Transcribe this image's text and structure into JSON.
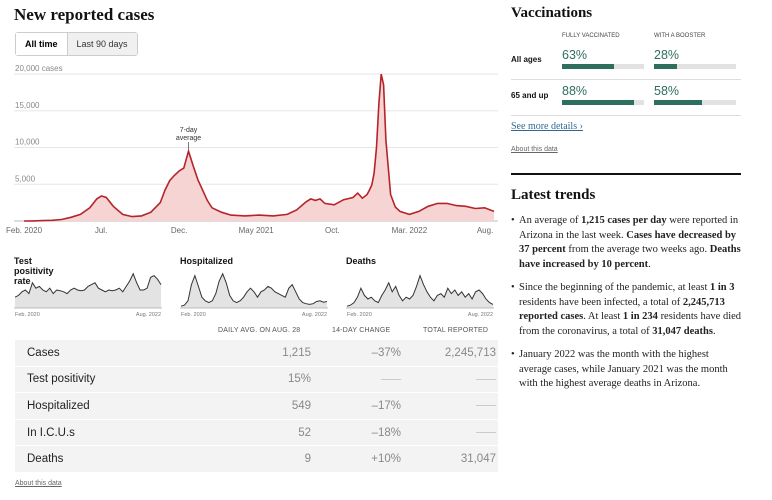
{
  "cases_section": {
    "title": "New reported cases",
    "toggle": [
      "All time",
      "Last 90 days"
    ],
    "annotation": [
      "7-day",
      "average"
    ]
  },
  "chart_data": [
    {
      "type": "area",
      "title": "New reported cases",
      "series_name": "7-day average",
      "y_ticks": [
        "20,000 cases",
        "15,000",
        "10,000",
        "5,000"
      ],
      "y_tick_values": [
        20000,
        15000,
        10000,
        5000
      ],
      "ylim": [
        0,
        20000
      ],
      "x_ticks": [
        "Feb. 2020",
        "Jul.",
        "Dec.",
        "May 2021",
        "Oct.",
        "Mar. 2022",
        "Aug."
      ],
      "x_tick_pos": [
        0,
        0.164,
        0.33,
        0.494,
        0.656,
        0.82,
        0.981
      ],
      "x": [
        0,
        0.02,
        0.04,
        0.06,
        0.08,
        0.1,
        0.12,
        0.14,
        0.155,
        0.165,
        0.175,
        0.19,
        0.21,
        0.23,
        0.25,
        0.27,
        0.29,
        0.3,
        0.31,
        0.32,
        0.33,
        0.34,
        0.35,
        0.36,
        0.37,
        0.38,
        0.39,
        0.4,
        0.42,
        0.44,
        0.47,
        0.5,
        0.53,
        0.56,
        0.58,
        0.6,
        0.61,
        0.62,
        0.63,
        0.64,
        0.66,
        0.68,
        0.7,
        0.71,
        0.72,
        0.73,
        0.735,
        0.74,
        0.745,
        0.75,
        0.755,
        0.76,
        0.765,
        0.77,
        0.78,
        0.79,
        0.8,
        0.82,
        0.84,
        0.86,
        0.88,
        0.9,
        0.92,
        0.94,
        0.96,
        0.98,
        1
      ],
      "values": [
        0,
        20,
        50,
        100,
        200,
        500,
        900,
        1800,
        3000,
        3400,
        3200,
        2000,
        900,
        600,
        700,
        1200,
        2500,
        4200,
        5500,
        6200,
        6800,
        7200,
        9500,
        7500,
        5600,
        4200,
        2800,
        1800,
        1200,
        800,
        700,
        800,
        700,
        900,
        1500,
        2600,
        3000,
        2800,
        3000,
        2400,
        2200,
        2900,
        3200,
        3800,
        3100,
        3600,
        4200,
        4900,
        6500,
        10000,
        16000,
        20000,
        18500,
        11000,
        3600,
        1900,
        1300,
        900,
        1300,
        2000,
        2400,
        2400,
        2100,
        2000,
        1700,
        1800,
        1300
      ]
    },
    {
      "type": "area",
      "title": "Test positivity rate",
      "x_ticks": [
        "Feb. 2020",
        "Aug. 2022"
      ],
      "values": [
        0.3,
        0.35,
        0.45,
        0.5,
        0.4,
        0.7,
        0.55,
        0.6,
        0.5,
        0.45,
        0.55,
        0.4,
        0.5,
        0.48,
        0.45,
        0.4,
        0.5,
        0.55,
        0.5,
        0.48,
        0.5,
        0.6,
        0.65,
        0.7,
        0.55,
        0.5,
        0.45,
        0.5,
        0.48,
        0.5,
        0.55,
        0.45,
        0.6,
        0.75,
        0.95,
        0.7,
        0.5,
        0.5,
        0.55,
        0.85,
        0.9,
        0.8,
        0.65
      ]
    },
    {
      "type": "area",
      "title": "Hospitalized",
      "x_ticks": [
        "Feb. 2020",
        "Aug. 2022"
      ],
      "values": [
        0.05,
        0.08,
        0.2,
        0.65,
        0.9,
        0.6,
        0.3,
        0.2,
        0.15,
        0.2,
        0.4,
        0.75,
        0.95,
        0.7,
        0.35,
        0.2,
        0.15,
        0.2,
        0.3,
        0.45,
        0.55,
        0.45,
        0.3,
        0.45,
        0.5,
        0.6,
        0.55,
        0.45,
        0.4,
        0.35,
        0.3,
        0.55,
        0.65,
        0.45,
        0.25,
        0.15,
        0.12,
        0.1,
        0.12,
        0.18,
        0.2,
        0.16,
        0.18
      ]
    },
    {
      "type": "area",
      "title": "Deaths",
      "x_ticks": [
        "Feb. 2020",
        "Aug. 2022"
      ],
      "values": [
        0.05,
        0.08,
        0.15,
        0.3,
        0.55,
        0.35,
        0.25,
        0.3,
        0.2,
        0.15,
        0.35,
        0.5,
        0.7,
        0.45,
        0.6,
        0.35,
        0.2,
        0.3,
        0.25,
        0.35,
        0.6,
        0.9,
        0.65,
        0.45,
        0.3,
        0.2,
        0.35,
        0.4,
        0.3,
        0.55,
        0.4,
        0.5,
        0.35,
        0.45,
        0.3,
        0.4,
        0.25,
        0.45,
        0.5,
        0.4,
        0.25,
        0.15,
        0.1
      ]
    }
  ],
  "table": {
    "headers": [
      "Daily avg. on Aug. 28",
      "14-day change",
      "Total reported"
    ],
    "rows": [
      {
        "label": "Cases",
        "avg": "1,215",
        "change": "–37%",
        "total": "2,245,713"
      },
      {
        "label": "Test positivity",
        "avg": "15%",
        "change": "",
        "total": ""
      },
      {
        "label": "Hospitalized",
        "avg": "549",
        "change": "–17%",
        "total": ""
      },
      {
        "label": "In I.C.U.s",
        "avg": "52",
        "change": "–18%",
        "total": ""
      },
      {
        "label": "Deaths",
        "avg": "9",
        "change": "+10%",
        "total": "31,047"
      }
    ],
    "about": "About this data"
  },
  "vaccinations": {
    "title": "Vaccinations",
    "headers": [
      "Fully vaccinated",
      "With a booster"
    ],
    "rows": [
      {
        "label": "All ages",
        "full": "63%",
        "full_value": 0.63,
        "booster": "28%",
        "booster_value": 0.28
      },
      {
        "label": "65 and up",
        "full": "88%",
        "full_value": 0.88,
        "booster": "58%",
        "booster_value": 0.58
      }
    ],
    "see_more": "See more details ›",
    "about": "About this data"
  },
  "trends": {
    "title": "Latest trends",
    "items": [
      [
        {
          "t": "An average of ",
          "b": false
        },
        {
          "t": "1,215 cases per day",
          "b": true
        },
        {
          "t": " were reported in Arizona in the last week. ",
          "b": false
        },
        {
          "t": "Cases have decreased by 37 percent",
          "b": true
        },
        {
          "t": " from the average two weeks ago. ",
          "b": false
        },
        {
          "t": "Deaths have increased by 10 percent",
          "b": true
        },
        {
          "t": ".",
          "b": false
        }
      ],
      [
        {
          "t": "Since the beginning of the pandemic, at least ",
          "b": false
        },
        {
          "t": "1 in 3",
          "b": true
        },
        {
          "t": " residents have been infected, a total of ",
          "b": false
        },
        {
          "t": "2,245,713 reported cases",
          "b": true
        },
        {
          "t": ". At least ",
          "b": false
        },
        {
          "t": "1 in 234",
          "b": true
        },
        {
          "t": " residents have died from the coronavirus, a total of ",
          "b": false
        },
        {
          "t": "31,047 deaths",
          "b": true
        },
        {
          "t": ".",
          "b": false
        }
      ],
      [
        {
          "t": "January 2022 was the month with the highest average cases, while January 2021 was the month with the highest average deaths in Arizona.",
          "b": false
        }
      ]
    ]
  },
  "colors": {
    "accent_red": "#b5242a",
    "fill_red": "#f7d4d4",
    "vax_green": "#2d6e5f",
    "gray_line": "#333333",
    "gray_fill": "#e3e3e3"
  }
}
